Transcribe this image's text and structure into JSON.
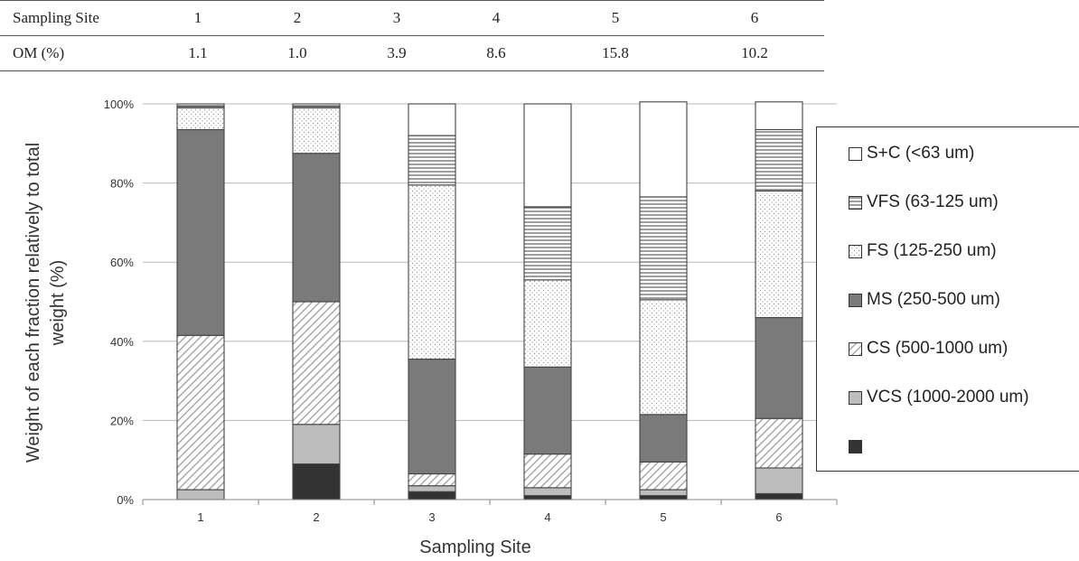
{
  "table": {
    "rows": [
      {
        "label": "Sampling Site",
        "values": [
          "1",
          "2",
          "3",
          "4",
          "5",
          "6"
        ]
      },
      {
        "label": "OM (%)",
        "values": [
          "1.1",
          "1.0",
          "3.9",
          "8.6",
          "15.8",
          "10.2"
        ]
      }
    ]
  },
  "chart_data": {
    "type": "bar",
    "stacked": true,
    "categories": [
      "1",
      "2",
      "3",
      "4",
      "5",
      "6"
    ],
    "xlabel": "Sampling Site",
    "ylabel": "Weight of each fraction relatively to total weight (%)",
    "ylim": [
      0,
      100
    ],
    "yticks": [
      "0%",
      "20%",
      "40%",
      "60%",
      "80%",
      "100%"
    ],
    "grid": true,
    "legend_position": "right",
    "series": [
      {
        "name": "",
        "fill": "#333333",
        "pattern": "solid-dark",
        "values": [
          0.0,
          9.0,
          2.0,
          1.0,
          1.0,
          1.5
        ]
      },
      {
        "name": "VCS (1000-2000 um)",
        "fill": "#bdbdbd",
        "pattern": "solid-light",
        "values": [
          2.5,
          10.0,
          1.5,
          2.0,
          1.5,
          6.5
        ]
      },
      {
        "name": "CS (500-1000 um)",
        "fill": "#ffffff",
        "pattern": "diagonal-hatch",
        "values": [
          39.0,
          31.0,
          3.0,
          8.5,
          7.0,
          12.5
        ]
      },
      {
        "name": "MS (250-500 um)",
        "fill": "#7a7a7a",
        "pattern": "solid-medium",
        "values": [
          52.0,
          37.5,
          29.0,
          22.0,
          12.0,
          25.5
        ]
      },
      {
        "name": "FS (125-250 um)",
        "fill": "#ffffff",
        "pattern": "dots",
        "values": [
          5.5,
          11.5,
          44.0,
          22.0,
          29.0,
          32.0
        ]
      },
      {
        "name": "VFS (63-125 um)",
        "fill": "#ffffff",
        "pattern": "horizontal-lines",
        "values": [
          0.5,
          0.5,
          12.5,
          18.5,
          26.0,
          15.5
        ]
      },
      {
        "name": "S+C (<63 um)",
        "fill": "#ffffff",
        "pattern": "white",
        "values": [
          0.5,
          0.5,
          8.0,
          26.0,
          24.0,
          7.0
        ]
      }
    ]
  }
}
